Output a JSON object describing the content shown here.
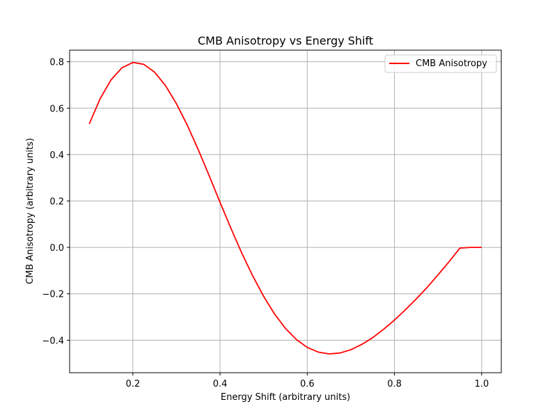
{
  "chart_data": {
    "type": "line",
    "title": "CMB Anisotropy vs Energy Shift",
    "xlabel": "Energy Shift (arbitrary units)",
    "ylabel": "CMB Anisotropy (arbitrary units)",
    "xlim": [
      0.055,
      1.045
    ],
    "ylim": [
      -0.54,
      0.85
    ],
    "xticks": [
      0.2,
      0.4,
      0.6,
      0.8,
      1.0
    ],
    "xtick_labels": [
      "0.2",
      "0.4",
      "0.6",
      "0.8",
      "1.0"
    ],
    "yticks": [
      -0.4,
      -0.2,
      0.0,
      0.2,
      0.4,
      0.6,
      0.8
    ],
    "ytick_labels": [
      "−0.4",
      "−0.2",
      "0.0",
      "0.2",
      "0.4",
      "0.6",
      "0.8"
    ],
    "grid": true,
    "legend_position": "top-right",
    "series": [
      {
        "name": "CMB Anisotropy",
        "color": "#ff0000",
        "x": [
          0.1,
          0.125,
          0.15,
          0.175,
          0.2,
          0.225,
          0.25,
          0.275,
          0.3,
          0.325,
          0.35,
          0.375,
          0.4,
          0.425,
          0.45,
          0.475,
          0.5,
          0.525,
          0.55,
          0.575,
          0.6,
          0.625,
          0.65,
          0.675,
          0.7,
          0.725,
          0.75,
          0.775,
          0.8,
          0.825,
          0.85,
          0.875,
          0.9,
          0.925,
          0.95,
          0.975,
          1.0
        ],
        "y": [
          0.532,
          0.641,
          0.722,
          0.774,
          0.797,
          0.789,
          0.755,
          0.697,
          0.619,
          0.526,
          0.421,
          0.309,
          0.194,
          0.082,
          -0.025,
          -0.123,
          -0.211,
          -0.287,
          -0.349,
          -0.397,
          -0.431,
          -0.451,
          -0.459,
          -0.455,
          -0.441,
          -0.418,
          -0.389,
          -0.353,
          -0.313,
          -0.269,
          -0.222,
          -0.172,
          -0.118,
          -0.062,
          -0.003,
          0.0,
          0.0
        ]
      }
    ]
  }
}
